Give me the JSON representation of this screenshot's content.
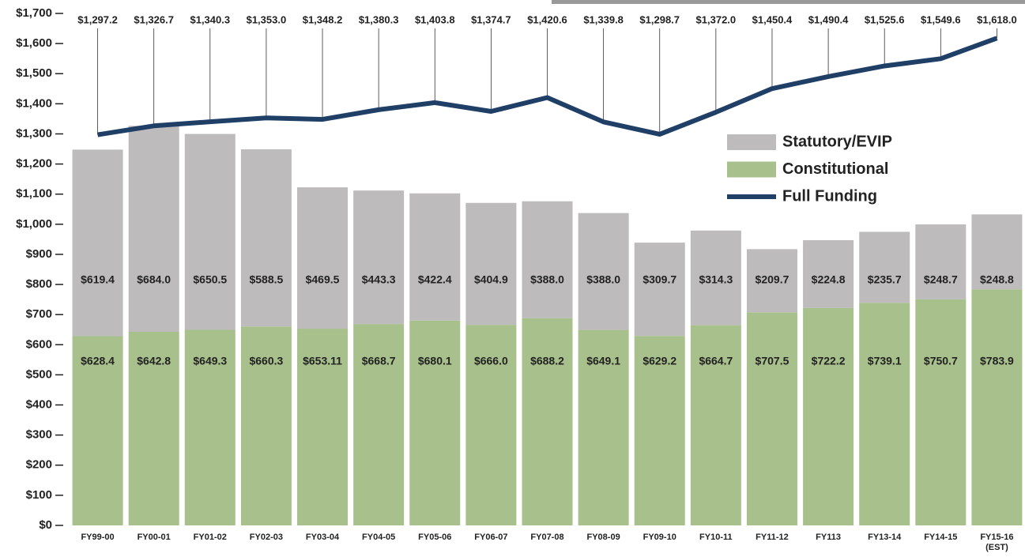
{
  "chart_data": {
    "type": "stacked_bar_line",
    "categories": [
      "FY99-00",
      "FY00-01",
      "FY01-02",
      "FY02-03",
      "FY03-04",
      "FY04-05",
      "FY05-06",
      "FY06-07",
      "FY07-08",
      "FY08-09",
      "FY09-10",
      "FY10-11",
      "FY11-12",
      "FY113",
      "FY13-14",
      "FY14-15",
      "FY15-16 (EST)"
    ],
    "series": [
      {
        "name": "Constitutional",
        "type": "bar",
        "color": "#a8c08c",
        "values": [
          628.4,
          642.8,
          649.3,
          660.3,
          653.11,
          668.7,
          680.1,
          666.0,
          688.2,
          649.1,
          629.2,
          664.7,
          707.5,
          722.2,
          739.1,
          750.7,
          783.9
        ],
        "value_labels": [
          "$628.4",
          "$642.8",
          "$649.3",
          "$660.3",
          "$653.11",
          "$668.7",
          "$680.1",
          "$666.0",
          "$688.2",
          "$649.1",
          "$629.2",
          "$664.7",
          "$707.5",
          "$722.2",
          "$739.1",
          "$750.7",
          "$783.9"
        ]
      },
      {
        "name": "Statutory/EVIP",
        "type": "bar",
        "color": "#bdbbbc",
        "values": [
          619.4,
          684.0,
          650.5,
          588.5,
          469.5,
          443.3,
          422.4,
          404.9,
          388.0,
          388.0,
          309.7,
          314.3,
          209.7,
          224.8,
          235.7,
          248.7,
          248.8
        ],
        "value_labels": [
          "$619.4",
          "$684.0",
          "$650.5",
          "$588.5",
          "$469.5",
          "$443.3",
          "$422.4",
          "$404.9",
          "$388.0",
          "$388.0",
          "$309.7",
          "$314.3",
          "$209.7",
          "$224.8",
          "$235.7",
          "$248.7",
          "$248.8"
        ]
      },
      {
        "name": "Full Funding",
        "type": "line",
        "color": "#1f3f66",
        "values": [
          1297.2,
          1326.7,
          1340.3,
          1353.0,
          1348.2,
          1380.3,
          1403.8,
          1374.7,
          1420.6,
          1339.8,
          1298.7,
          1372.0,
          1450.4,
          1490.4,
          1525.6,
          1549.6,
          1618.0
        ],
        "value_labels": [
          "$1,297.2",
          "$1,326.7",
          "$1,340.3",
          "$1,353.0",
          "$1,348.2",
          "$1,380.3",
          "$1,403.8",
          "$1,374.7",
          "$1,420.6",
          "$1,339.8",
          "$1,298.7",
          "$1,372.0",
          "$1,450.4",
          "$1,490.4",
          "$1,525.6",
          "$1,549.6",
          "$1,618.0"
        ]
      }
    ],
    "ylim": [
      0,
      1700
    ],
    "yticks": [
      {
        "value": 0,
        "label": "$0"
      },
      {
        "value": 100,
        "label": "$100"
      },
      {
        "value": 200,
        "label": "$200"
      },
      {
        "value": 300,
        "label": "$300"
      },
      {
        "value": 400,
        "label": "$400"
      },
      {
        "value": 500,
        "label": "$500"
      },
      {
        "value": 600,
        "label": "$600"
      },
      {
        "value": 700,
        "label": "$700"
      },
      {
        "value": 800,
        "label": "$800"
      },
      {
        "value": 900,
        "label": "$900"
      },
      {
        "value": 1000,
        "label": "$1,000"
      },
      {
        "value": 1100,
        "label": "$1,100"
      },
      {
        "value": 1200,
        "label": "$1,200"
      },
      {
        "value": 1300,
        "label": "$1,300"
      },
      {
        "value": 1400,
        "label": "$1,400"
      },
      {
        "value": 1500,
        "label": "$1,500"
      },
      {
        "value": 1600,
        "label": "$1,600"
      },
      {
        "value": 1700,
        "label": "$1,700"
      }
    ],
    "legend": "upper right"
  }
}
